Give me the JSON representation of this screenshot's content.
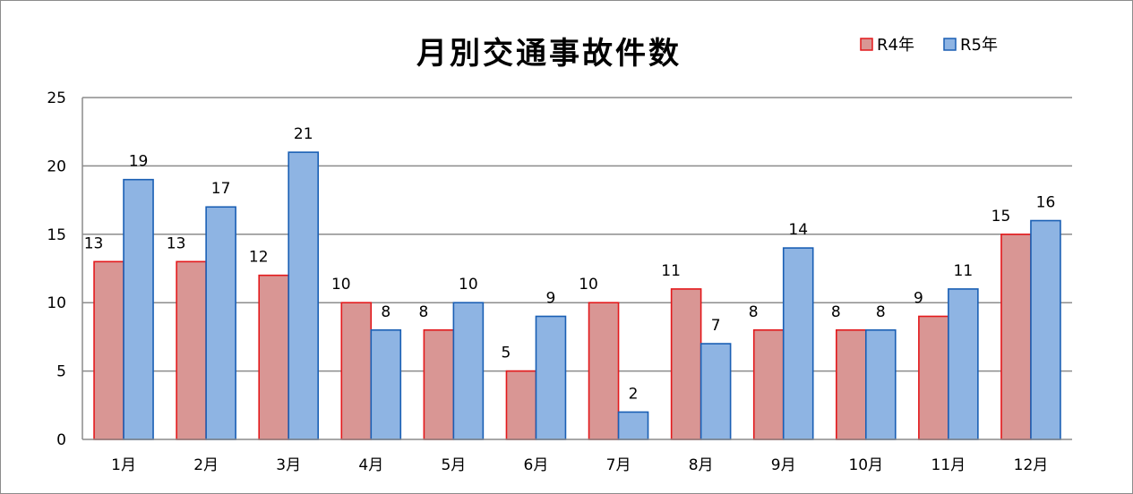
{
  "chart_data": {
    "type": "bar",
    "title": "月別交通事故件数",
    "categories": [
      "1月",
      "2月",
      "3月",
      "4月",
      "5月",
      "6月",
      "7月",
      "8月",
      "9月",
      "10月",
      "11月",
      "12月"
    ],
    "series": [
      {
        "name": "R4年",
        "values": [
          13,
          13,
          12,
          10,
          8,
          5,
          10,
          11,
          8,
          8,
          9,
          15
        ],
        "fill": "#d99694",
        "stroke": "#e3191c"
      },
      {
        "name": "R5年",
        "values": [
          19,
          17,
          21,
          8,
          10,
          9,
          2,
          7,
          14,
          8,
          11,
          16
        ],
        "fill": "#8eb4e3",
        "stroke": "#1a5fb4"
      }
    ],
    "ylim": [
      0,
      25
    ],
    "yticks": [
      0,
      5,
      10,
      15,
      20,
      25
    ],
    "grid": true,
    "legend_position": "top-right",
    "data_labels": true
  }
}
